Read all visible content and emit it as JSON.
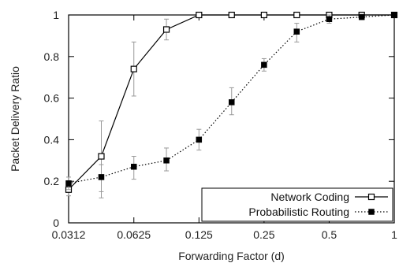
{
  "chart_data": {
    "type": "line",
    "xlabel": "Forwarding Factor (d)",
    "ylabel": "Packet Delivery Ratio",
    "x_scale": "log2",
    "xlim": [
      0.0312,
      1
    ],
    "ylim": [
      0,
      1
    ],
    "x_ticks": [
      0.0312,
      0.0625,
      0.125,
      0.25,
      0.5,
      1
    ],
    "x_tick_labels": [
      "0.0312",
      "0.0625",
      "0.125",
      "0.25",
      "0.5",
      "1"
    ],
    "y_ticks": [
      0,
      0.2,
      0.4,
      0.6,
      0.8,
      1
    ],
    "y_tick_labels": [
      "0",
      "0.2",
      "0.4",
      "0.6",
      "0.8",
      "1"
    ],
    "grid": false,
    "legend_position": "bottom-right",
    "series": [
      {
        "name": "Network Coding",
        "line_style": "solid",
        "marker": "open-square",
        "color": "#000000",
        "x": [
          0.0312,
          0.0442,
          0.0625,
          0.0884,
          0.125,
          0.177,
          0.25,
          0.354,
          0.5,
          0.707,
          1
        ],
        "y": [
          0.16,
          0.32,
          0.74,
          0.93,
          1.0,
          1.0,
          1.0,
          1.0,
          1.0,
          1.0,
          1.0
        ],
        "err_low": [
          0.13,
          0.12,
          0.61,
          0.88,
          0.99,
          1.0,
          1.0,
          1.0,
          0.99,
          1.0,
          1.0
        ],
        "err_high": [
          0.19,
          0.49,
          0.87,
          0.98,
          1.0,
          1.0,
          1.0,
          1.0,
          1.0,
          1.0,
          1.0
        ]
      },
      {
        "name": "Probabilistic Routing",
        "line_style": "dotted",
        "marker": "filled-square",
        "color": "#000000",
        "x": [
          0.0312,
          0.0442,
          0.0625,
          0.0884,
          0.125,
          0.177,
          0.25,
          0.354,
          0.5,
          0.707,
          1
        ],
        "y": [
          0.19,
          0.22,
          0.27,
          0.3,
          0.4,
          0.58,
          0.76,
          0.92,
          0.98,
          0.99,
          1.0
        ],
        "err_low": [
          0.16,
          0.15,
          0.21,
          0.25,
          0.35,
          0.52,
          0.73,
          0.87,
          0.96,
          0.98,
          1.0
        ],
        "err_high": [
          0.22,
          0.28,
          0.32,
          0.36,
          0.45,
          0.65,
          0.79,
          0.96,
          1.0,
          1.0,
          1.0
        ]
      }
    ]
  }
}
